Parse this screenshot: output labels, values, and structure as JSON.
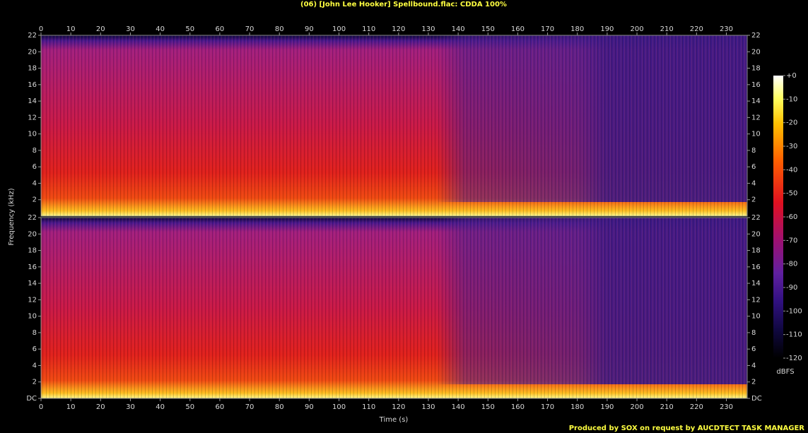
{
  "chart_data": {
    "type": "spectrogram",
    "title": "(06) [John Lee Hooker] Spellbound.flac: CDDA 100%",
    "x_label": "Time (s)",
    "y_label": "Frequency (kHz)",
    "xlim": [
      0,
      237
    ],
    "xticks": [
      0,
      10,
      20,
      30,
      40,
      50,
      60,
      70,
      80,
      90,
      100,
      110,
      120,
      130,
      140,
      150,
      160,
      170,
      180,
      190,
      200,
      210,
      220,
      230
    ],
    "panels": [
      {
        "ylim": [
          0,
          22
        ],
        "yticks": [
          2,
          4,
          6,
          8,
          10,
          12,
          14,
          16,
          18,
          20,
          22
        ]
      },
      {
        "ylim": [
          0,
          22
        ],
        "yticks": [
          {
            "value": 0,
            "label": "DC"
          },
          2,
          4,
          6,
          8,
          10,
          12,
          14,
          16,
          18,
          20,
          22
        ]
      }
    ],
    "colorbar": {
      "label": "dBFS",
      "lim": [
        -120,
        0
      ],
      "ticks": [
        {
          "value": 0,
          "label": "+0"
        },
        -10,
        -20,
        -30,
        -40,
        -50,
        -60,
        -70,
        -80,
        -90,
        -100,
        -110,
        -120
      ]
    },
    "footer": "Produced by SOX on request by AUCDTECT TASK MANAGER"
  }
}
